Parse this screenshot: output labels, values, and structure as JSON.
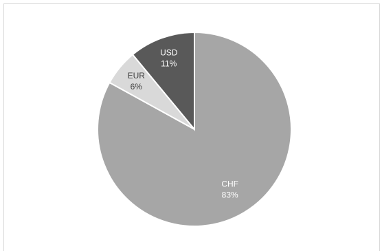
{
  "chart_data": {
    "type": "pie",
    "title": "",
    "slices": [
      {
        "label": "CHF",
        "percent_label": "83%",
        "value": 83,
        "color": "#a6a6a6",
        "text_color": "#ffffff"
      },
      {
        "label": "EUR",
        "percent_label": "6%",
        "value": 6,
        "color": "#d9d9d9",
        "text_color": "#404040"
      },
      {
        "label": "USD",
        "percent_label": "11%",
        "value": 11,
        "color": "#595959",
        "text_color": "#ffffff"
      }
    ],
    "legend": "none",
    "start_angle_deg": 0,
    "direction": "clockwise",
    "slice_border_color": "#ffffff"
  }
}
